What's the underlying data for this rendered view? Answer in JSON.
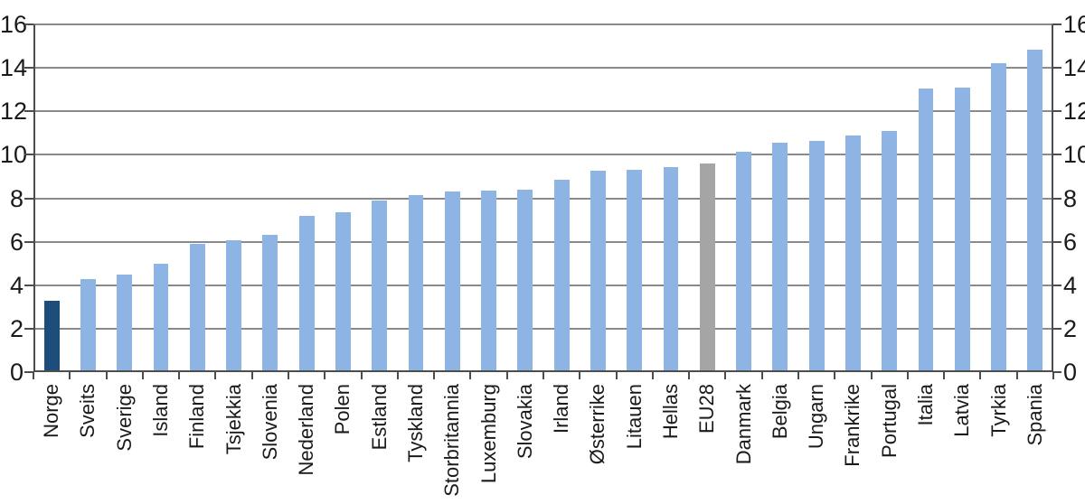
{
  "chart_data": {
    "type": "bar",
    "title": "",
    "xlabel": "",
    "ylabel": "",
    "categories": [
      "Norge",
      "Sveits",
      "Sverige",
      "Island",
      "Finland",
      "Tsjekkia",
      "Slovenia",
      "Nederland",
      "Polen",
      "Estland",
      "Tyskland",
      "Storbritannia",
      "Luxemburg",
      "Slovakia",
      "Irland",
      "Østerrike",
      "Litauen",
      "Hellas",
      "EU28",
      "Danmark",
      "Belgia",
      "Ungarn",
      "Frankrike",
      "Portugal",
      "Italia",
      "Latvia",
      "Tyrkia",
      "Spania"
    ],
    "values": [
      3.3,
      4.3,
      4.5,
      5.0,
      5.9,
      6.05,
      6.3,
      7.2,
      7.35,
      7.9,
      8.15,
      8.3,
      8.35,
      8.4,
      8.85,
      9.25,
      9.3,
      9.45,
      9.6,
      10.15,
      10.55,
      10.65,
      10.9,
      11.1,
      13.05,
      13.1,
      14.2,
      14.85
    ],
    "ylim": [
      0,
      16
    ],
    "y_ticks": [
      0,
      2,
      4,
      6,
      8,
      10,
      12,
      14,
      16
    ],
    "dual_y_axis": true,
    "grid": "horizontal",
    "legend": "none",
    "bar_gap_ratio": 0.58,
    "special_bars": {
      "Norge": "highlight_bar",
      "EU28": "neutral_bar"
    },
    "colors": {
      "default_bar": "#8DB4E2",
      "highlight_bar": "#1D4E7B",
      "neutral_bar": "#A5A5A5",
      "gridline": "#8A8A8A",
      "axis": "#4D4D4D",
      "text": "#1A1A1A"
    }
  }
}
